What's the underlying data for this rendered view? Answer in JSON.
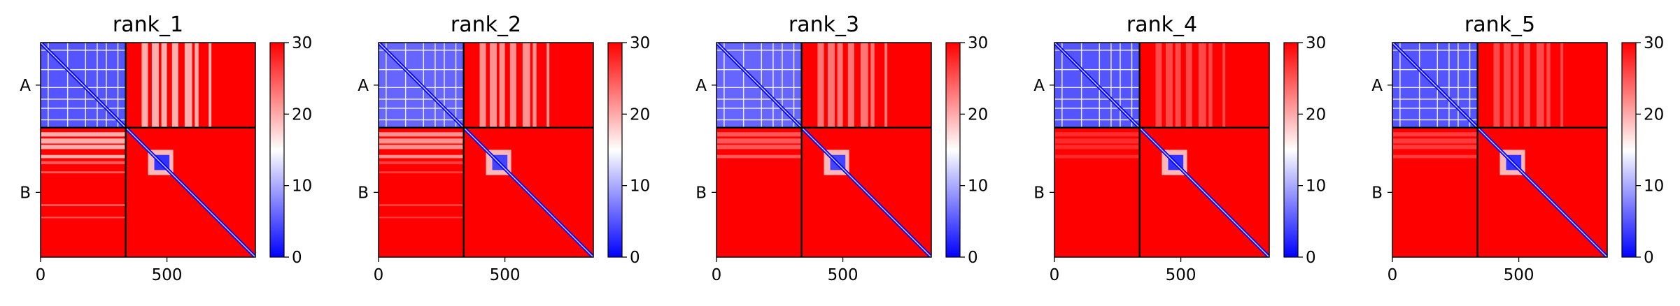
{
  "figure": {
    "colormap": {
      "low": "#0000ff",
      "mid": "#ffffff",
      "high": "#ff0000"
    },
    "boundary_color": "#000000"
  },
  "chart_data": [
    {
      "type": "heatmap",
      "title": "rank_1",
      "chains": [
        {
          "label": "A",
          "start": 0,
          "end": 337
        },
        {
          "label": "B",
          "start": 337,
          "end": 850
        }
      ],
      "xlim": [
        0,
        850
      ],
      "ylim": [
        850,
        0
      ],
      "xticks": [
        {
          "value": 0,
          "label": "0"
        },
        {
          "value": 500,
          "label": "500"
        }
      ],
      "colorbar": {
        "vmin": 0,
        "vmax": 30,
        "ticks": [
          {
            "value": 0,
            "label": "0"
          },
          {
            "value": 10,
            "label": "10"
          },
          {
            "value": 20,
            "label": "20"
          },
          {
            "value": 30,
            "label": "30"
          }
        ]
      },
      "approx_values": {
        "background": 30,
        "diagonal": 0,
        "chain_A_intra": 5,
        "A_rows_B_cols_stripes": 18,
        "B_rows_A_cols_block": 18,
        "B_core_domain": 3
      }
    },
    {
      "type": "heatmap",
      "title": "rank_2",
      "chains": [
        {
          "label": "A",
          "start": 0,
          "end": 337
        },
        {
          "label": "B",
          "start": 337,
          "end": 850
        }
      ],
      "xlim": [
        0,
        850
      ],
      "ylim": [
        850,
        0
      ],
      "xticks": [
        {
          "value": 0,
          "label": "0"
        },
        {
          "value": 500,
          "label": "500"
        }
      ],
      "colorbar": {
        "vmin": 0,
        "vmax": 30,
        "ticks": [
          {
            "value": 0,
            "label": "0"
          },
          {
            "value": 10,
            "label": "10"
          },
          {
            "value": 20,
            "label": "20"
          },
          {
            "value": 30,
            "label": "30"
          }
        ]
      },
      "approx_values": {
        "background": 30,
        "diagonal": 0,
        "chain_A_intra": 6,
        "A_rows_B_cols_stripes": 20,
        "B_rows_A_cols_block": 20,
        "B_core_domain": 4
      }
    },
    {
      "type": "heatmap",
      "title": "rank_3",
      "chains": [
        {
          "label": "A",
          "start": 0,
          "end": 337
        },
        {
          "label": "B",
          "start": 337,
          "end": 850
        }
      ],
      "xlim": [
        0,
        850
      ],
      "ylim": [
        850,
        0
      ],
      "xticks": [
        {
          "value": 0,
          "label": "0"
        },
        {
          "value": 500,
          "label": "500"
        }
      ],
      "colorbar": {
        "vmin": 0,
        "vmax": 30,
        "ticks": [
          {
            "value": 0,
            "label": "0"
          },
          {
            "value": 10,
            "label": "10"
          },
          {
            "value": 20,
            "label": "20"
          },
          {
            "value": 30,
            "label": "30"
          }
        ]
      },
      "approx_values": {
        "background": 30,
        "diagonal": 0,
        "chain_A_intra": 6,
        "A_rows_B_cols_stripes": 22,
        "B_rows_A_cols_block": 24,
        "B_core_domain": 4
      }
    },
    {
      "type": "heatmap",
      "title": "rank_4",
      "chains": [
        {
          "label": "A",
          "start": 0,
          "end": 337
        },
        {
          "label": "B",
          "start": 337,
          "end": 850
        }
      ],
      "xlim": [
        0,
        850
      ],
      "ylim": [
        850,
        0
      ],
      "xticks": [
        {
          "value": 0,
          "label": "0"
        },
        {
          "value": 500,
          "label": "500"
        }
      ],
      "colorbar": {
        "vmin": 0,
        "vmax": 30,
        "ticks": [
          {
            "value": 0,
            "label": "0"
          },
          {
            "value": 10,
            "label": "10"
          },
          {
            "value": 20,
            "label": "20"
          },
          {
            "value": 30,
            "label": "30"
          }
        ]
      },
      "approx_values": {
        "background": 30,
        "diagonal": 0,
        "chain_A_intra": 5,
        "A_rows_B_cols_stripes": 25,
        "B_rows_A_cols_block": 27,
        "B_core_domain": 3
      }
    },
    {
      "type": "heatmap",
      "title": "rank_5",
      "chains": [
        {
          "label": "A",
          "start": 0,
          "end": 337
        },
        {
          "label": "B",
          "start": 337,
          "end": 850
        }
      ],
      "xlim": [
        0,
        850
      ],
      "ylim": [
        850,
        0
      ],
      "xticks": [
        {
          "value": 0,
          "label": "0"
        },
        {
          "value": 500,
          "label": "500"
        }
      ],
      "colorbar": {
        "vmin": 0,
        "vmax": 30,
        "ticks": [
          {
            "value": 0,
            "label": "0"
          },
          {
            "value": 10,
            "label": "10"
          },
          {
            "value": 20,
            "label": "20"
          },
          {
            "value": 30,
            "label": "30"
          }
        ]
      },
      "approx_values": {
        "background": 30,
        "diagonal": 0,
        "chain_A_intra": 5,
        "A_rows_B_cols_stripes": 25,
        "B_rows_A_cols_block": 26,
        "B_core_domain": 3
      }
    }
  ]
}
